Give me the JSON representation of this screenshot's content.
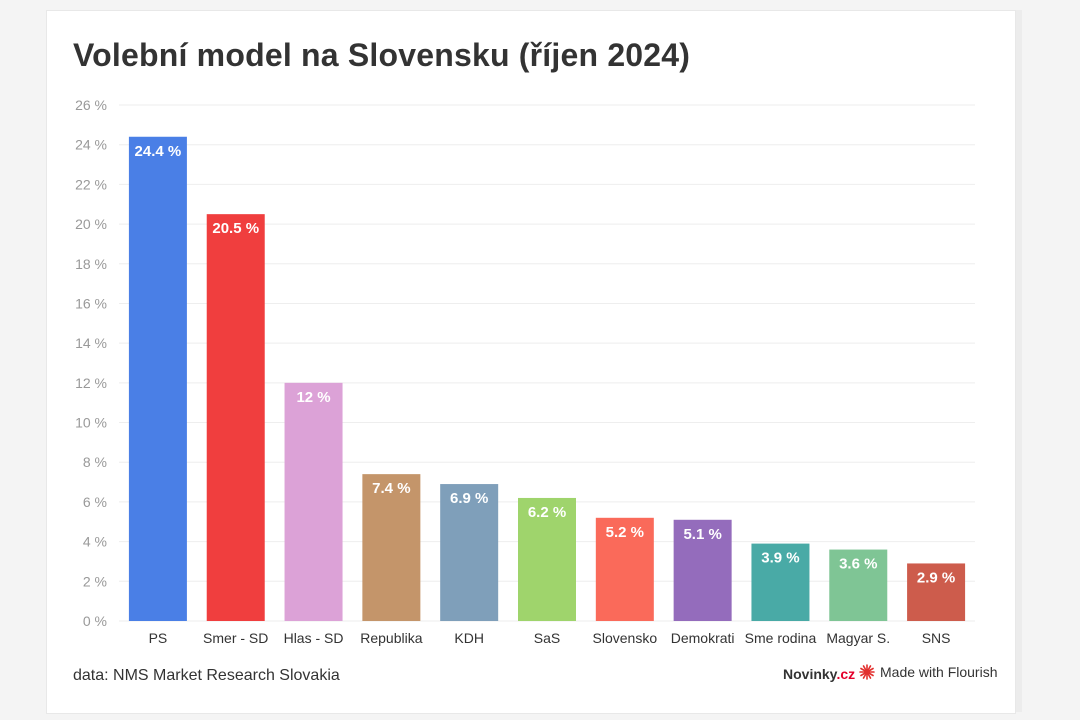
{
  "chart_data": {
    "type": "bar",
    "title": "Volební model na Slovensku (říjen 2024)",
    "xlabel": "",
    "ylabel": "",
    "ylim": [
      0,
      26
    ],
    "ytick_step": 2,
    "y_unit": " %",
    "grid": true,
    "categories": [
      "PS",
      "Smer - SD",
      "Hlas - SD",
      "Republika",
      "KDH",
      "SaS",
      "Slovensko",
      "Demokrati",
      "Sme rodina",
      "Magyar S.",
      "SNS"
    ],
    "values": [
      24.4,
      20.5,
      12,
      7.4,
      6.9,
      6.2,
      5.2,
      5.1,
      3.9,
      3.6,
      2.9
    ],
    "colors": [
      "#4a7fe6",
      "#f03e3e",
      "#dca2d7",
      "#c4956a",
      "#7f9fba",
      "#9fd46c",
      "#fa6a5a",
      "#946cbc",
      "#49aaa6",
      "#7fc595",
      "#cd5c4c"
    ]
  },
  "footer": {
    "source": "data: NMS Market Research Slovakia",
    "brand_main": "Novinky",
    "brand_suffix": ".cz",
    "credit": "Made with Flourish"
  },
  "colors": {
    "text": "#333333",
    "axis_text": "#999999",
    "grid": "#eeeeee",
    "brand_accent": "#e4002b",
    "flourish": "#e2302e"
  },
  "icons": {
    "flourish": "flourish-logo-icon"
  }
}
